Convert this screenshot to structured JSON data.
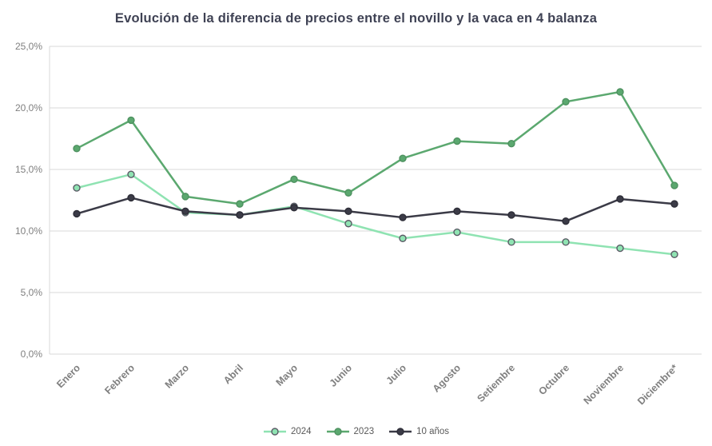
{
  "title": "Evolución de la diferencia de precios entre el novillo y la vaca en 4 balanza",
  "colors": {
    "title_text": "#3f4254",
    "axis_text": "#7f7f7f",
    "legend_text": "#595959",
    "gridline": "#d9d9d9",
    "background": "#ffffff"
  },
  "chart_data": {
    "type": "line",
    "title": "Evolución de la diferencia de precios entre el novillo y la vaca en 4 balanza",
    "categories": [
      "Enero",
      "Febrero",
      "Marzo",
      "Abril",
      "Mayo",
      "Junio",
      "Julio",
      "Agosto",
      "Setiembre",
      "Octubre",
      "Noviembre",
      "Diciembre*"
    ],
    "series": [
      {
        "name": "2024",
        "color": "#8fe3b2",
        "marker_fill": "#8fe3b2",
        "marker_stroke": "#5b5b66",
        "values": [
          13.5,
          14.6,
          11.5,
          11.3,
          12.0,
          10.6,
          9.4,
          9.9,
          9.1,
          9.1,
          8.6,
          8.1
        ]
      },
      {
        "name": "2023",
        "color": "#5ba86f",
        "marker_fill": "#5ba86f",
        "marker_stroke": "#4e9160",
        "values": [
          16.7,
          19.0,
          12.8,
          12.2,
          14.2,
          13.1,
          15.9,
          17.3,
          17.1,
          20.5,
          21.3,
          13.7
        ]
      },
      {
        "name": "10 años",
        "color": "#3b3b47",
        "marker_fill": "#3b3b47",
        "marker_stroke": "#2e2e38",
        "values": [
          11.4,
          12.7,
          11.6,
          11.3,
          11.9,
          11.6,
          11.1,
          11.6,
          11.3,
          10.8,
          12.6,
          12.2
        ]
      }
    ],
    "xlabel": "",
    "ylabel": "",
    "ylim": [
      0,
      25
    ],
    "ytick_step": 5,
    "ytick_labels": [
      "0,0%",
      "5,0%",
      "10,0%",
      "15,0%",
      "20,0%",
      "25,0%"
    ],
    "grid": "horizontal",
    "legend_position": "bottom"
  }
}
